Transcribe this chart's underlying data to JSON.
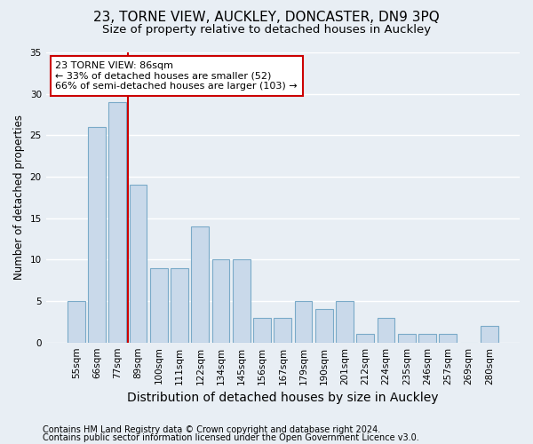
{
  "title1": "23, TORNE VIEW, AUCKLEY, DONCASTER, DN9 3PQ",
  "title2": "Size of property relative to detached houses in Auckley",
  "xlabel": "Distribution of detached houses by size in Auckley",
  "ylabel": "Number of detached properties",
  "categories": [
    "55sqm",
    "66sqm",
    "77sqm",
    "89sqm",
    "100sqm",
    "111sqm",
    "122sqm",
    "134sqm",
    "145sqm",
    "156sqm",
    "167sqm",
    "179sqm",
    "190sqm",
    "201sqm",
    "212sqm",
    "224sqm",
    "235sqm",
    "246sqm",
    "257sqm",
    "269sqm",
    "280sqm"
  ],
  "values": [
    5,
    26,
    29,
    19,
    9,
    9,
    14,
    10,
    10,
    3,
    3,
    5,
    4,
    5,
    1,
    3,
    1,
    1,
    1,
    0,
    2
  ],
  "bar_color": "#c9d9ea",
  "bar_edge_color": "#7aaac8",
  "background_color": "#e8eef4",
  "grid_color": "#ffffff",
  "vline_index": 2.5,
  "vline_color": "#cc0000",
  "annotation_line1": "23 TORNE VIEW: 86sqm",
  "annotation_line2": "← 33% of detached houses are smaller (52)",
  "annotation_line3": "66% of semi-detached houses are larger (103) →",
  "annotation_box_color": "#ffffff",
  "annotation_box_edge": "#cc0000",
  "ylim": [
    0,
    35
  ],
  "yticks": [
    0,
    5,
    10,
    15,
    20,
    25,
    30,
    35
  ],
  "footer1": "Contains HM Land Registry data © Crown copyright and database right 2024.",
  "footer2": "Contains public sector information licensed under the Open Government Licence v3.0.",
  "title1_fontsize": 11,
  "title2_fontsize": 9.5,
  "xlabel_fontsize": 10,
  "ylabel_fontsize": 8.5,
  "tick_fontsize": 7.5,
  "annotation_fontsize": 8,
  "footer_fontsize": 7
}
